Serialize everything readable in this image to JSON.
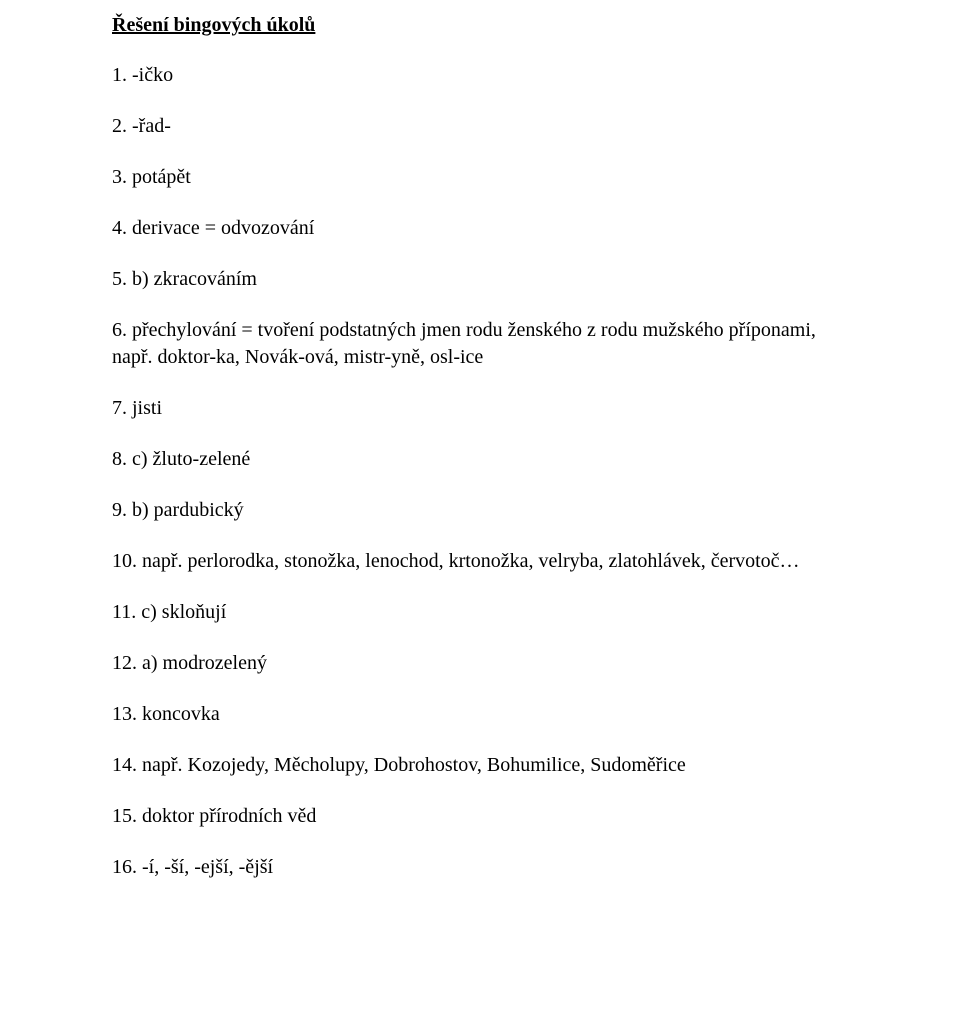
{
  "document": {
    "title": "Řešení bingových úkolů",
    "font_family": "Times New Roman",
    "text_color": "#000000",
    "background_color": "#ffffff",
    "title_fontsize": 20,
    "item_fontsize": 20,
    "items": [
      "1. -ičko",
      "2. -řad-",
      "3. potápět",
      "4. derivace = odvozování",
      "5. b) zkracováním",
      "6. přechylování = tvoření podstatných jmen rodu ženského z rodu mužského příponami, např. doktor-ka, Novák-ová, mistr-yně, osl-ice",
      "7. jisti",
      "8. c) žluto-zelené",
      "9. b) pardubický",
      "10. např. perlorodka, stonožka, lenochod, krtonožka, velryba, zlatohlávek, červotoč…",
      "11. c) skloňují",
      "12. a) modrozelený",
      "13. koncovka",
      "14. např. Kozojedy, Měcholupy, Dobrohostov, Bohumilice, Sudoměřice",
      "15. doktor přírodních věd",
      "16. -í, -ší, -ejší, -ější"
    ]
  }
}
